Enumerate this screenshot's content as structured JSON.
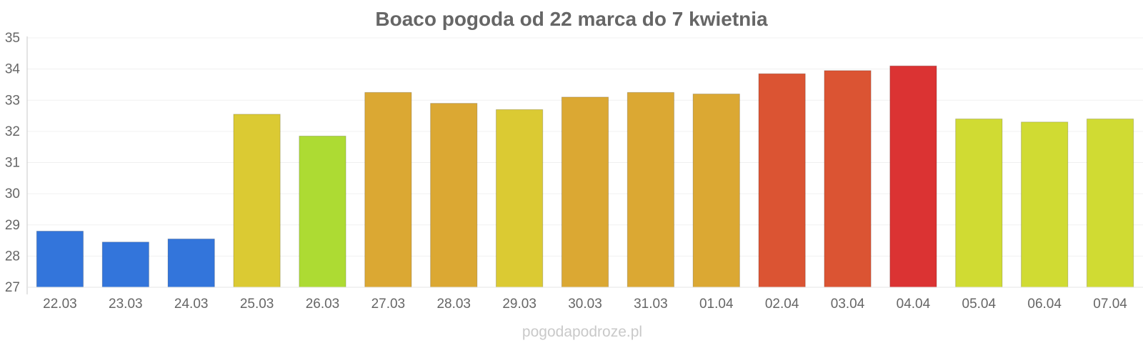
{
  "chart_data": {
    "type": "bar",
    "title": "Boaco pogoda od 22 marca do 7 kwietnia",
    "xlabel": "",
    "ylabel": "",
    "categories": [
      "22.03",
      "23.03",
      "24.03",
      "25.03",
      "26.03",
      "27.03",
      "28.03",
      "29.03",
      "30.03",
      "31.03",
      "01.04",
      "02.04",
      "03.04",
      "04.04",
      "05.04",
      "06.04",
      "07.04"
    ],
    "values": [
      28.8,
      28.45,
      28.55,
      32.55,
      31.85,
      33.25,
      32.9,
      32.7,
      33.1,
      33.25,
      33.2,
      33.85,
      33.95,
      34.1,
      32.4,
      32.3,
      32.4
    ],
    "colors": [
      "#3375db",
      "#3375db",
      "#3375db",
      "#dbca33",
      "#addb33",
      "#dba833",
      "#dba833",
      "#dbca33",
      "#dba833",
      "#dba833",
      "#dba833",
      "#db5433",
      "#db5433",
      "#db3333",
      "#d0db33",
      "#d0db33",
      "#d0db33"
    ],
    "ylim": [
      27,
      35
    ],
    "yticks": [
      "27",
      "28",
      "29",
      "30",
      "31",
      "32",
      "33",
      "34",
      "35"
    ],
    "grid": true,
    "legend": "none"
  },
  "footer": "pogodapodroze.pl"
}
